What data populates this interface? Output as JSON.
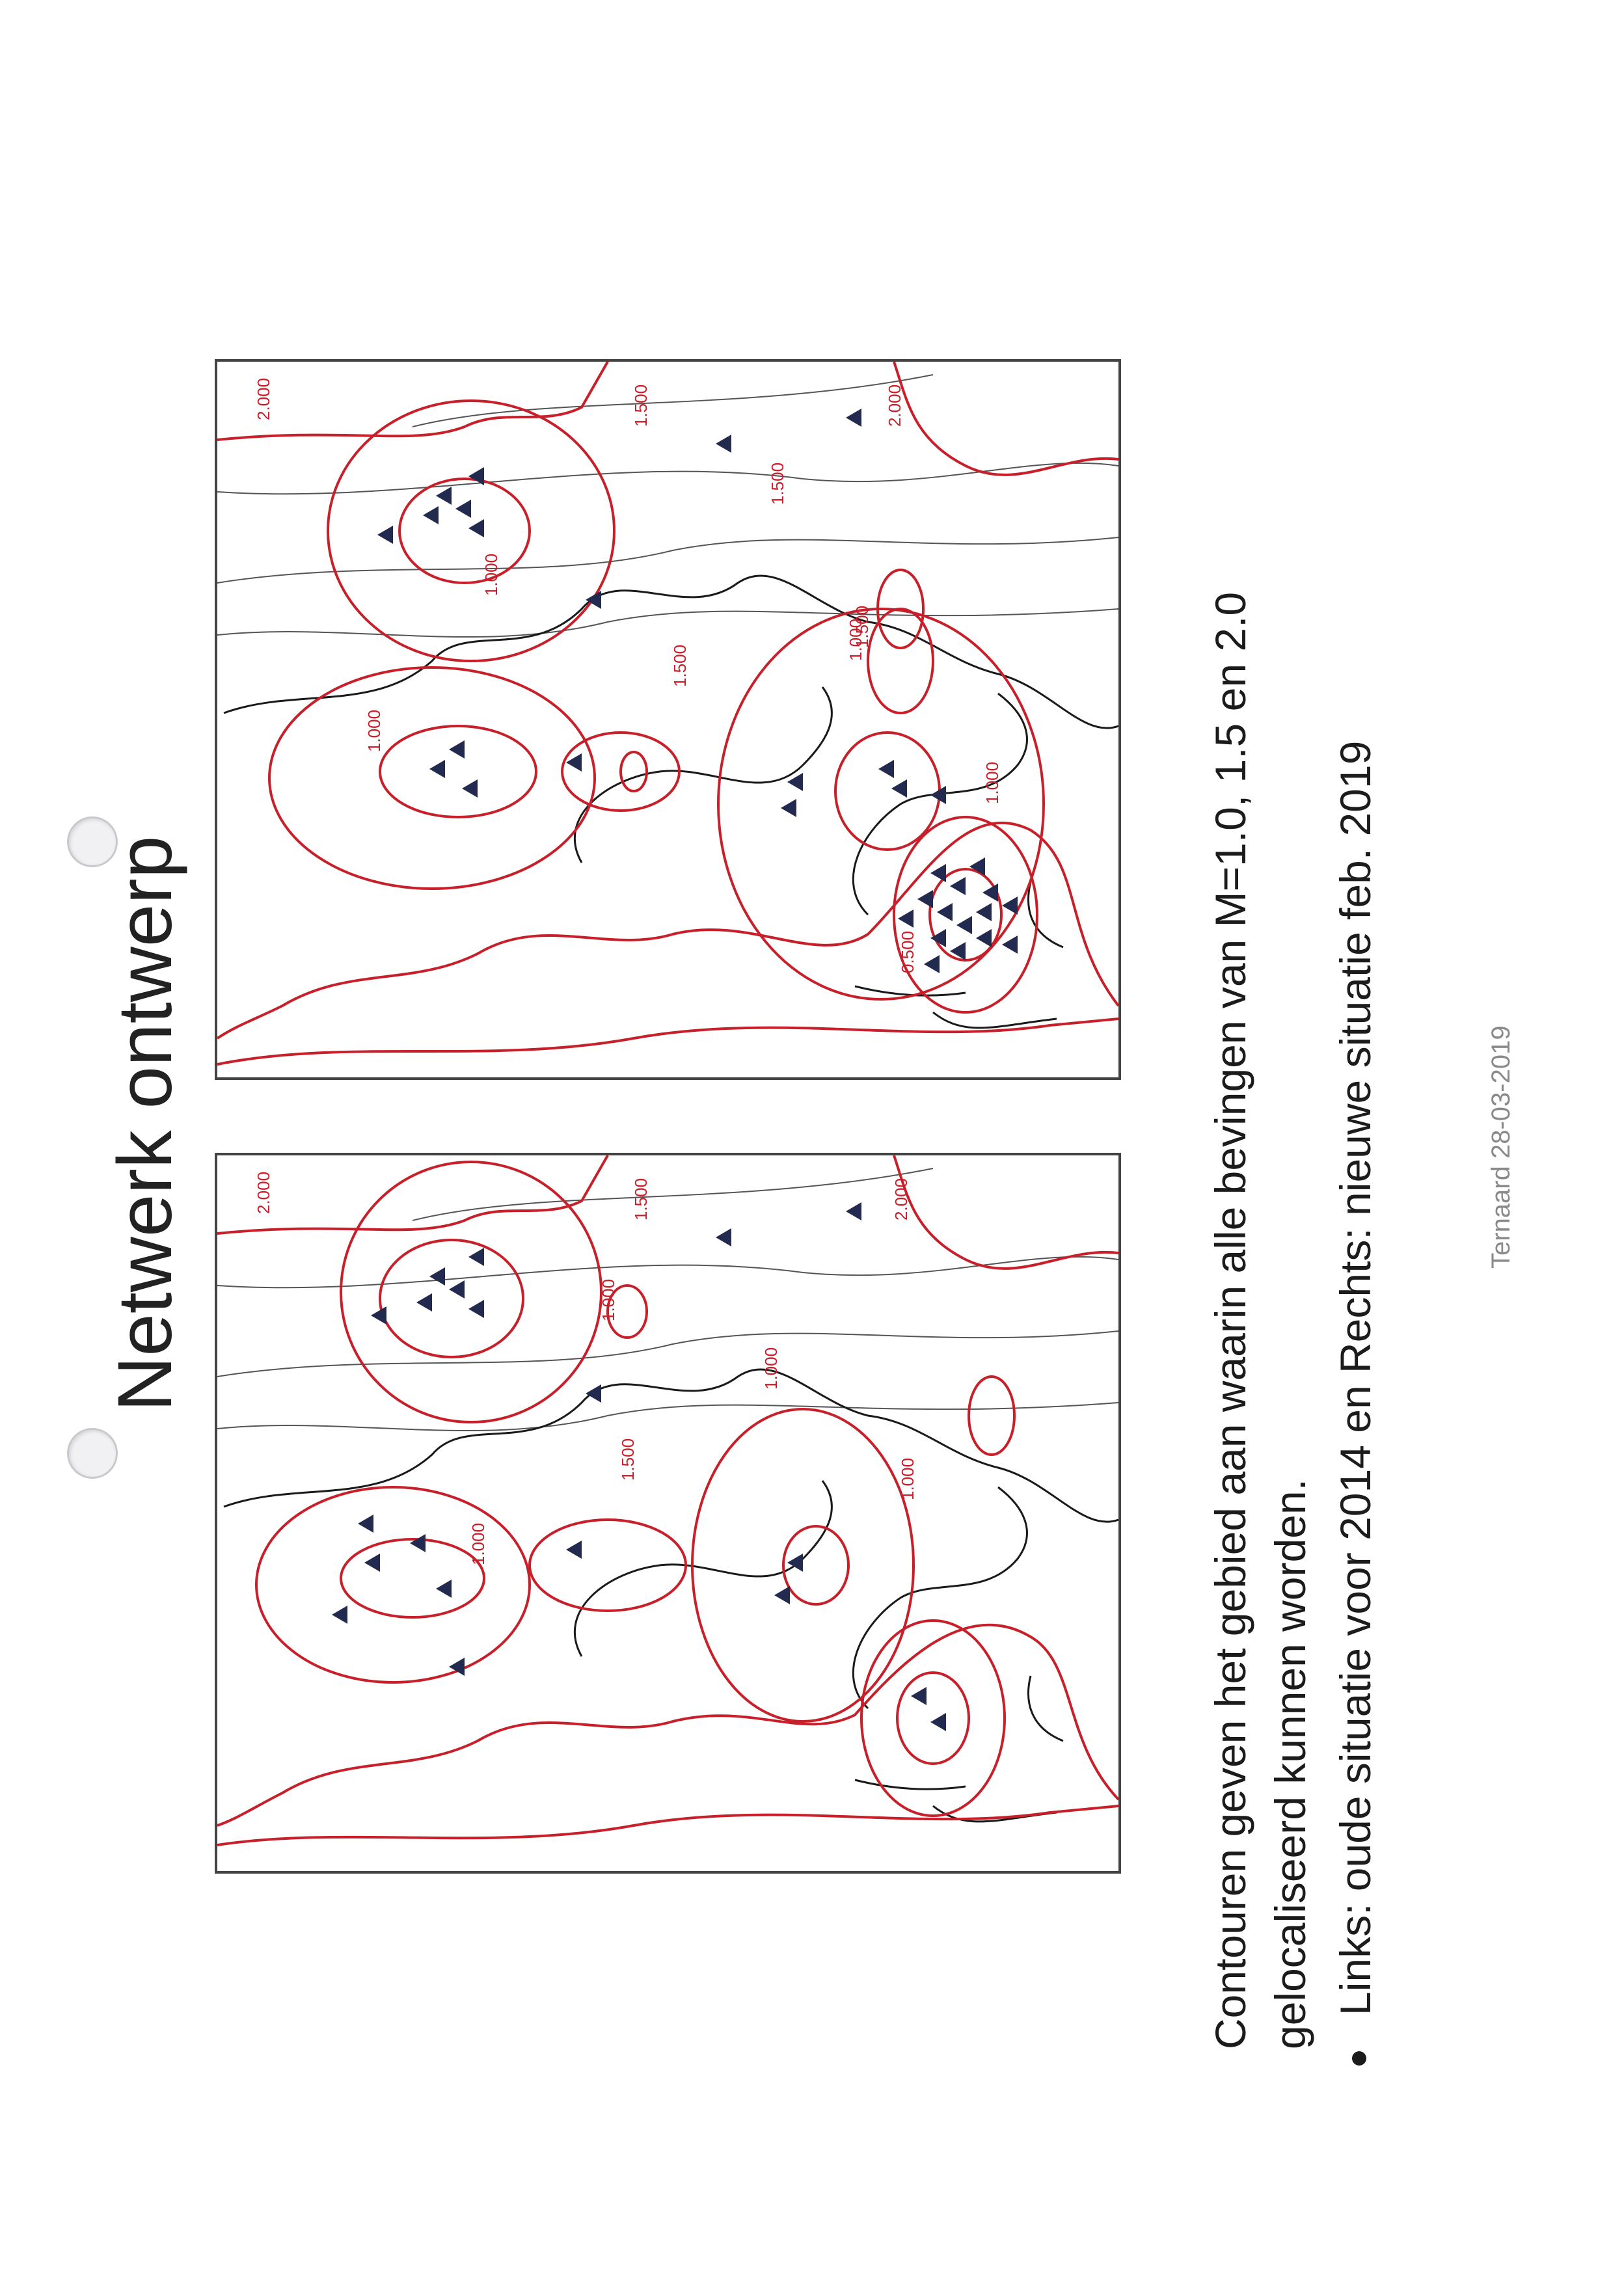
{
  "title": "Netwerk ontwerp",
  "caption": {
    "line1": "Contouren geven het gebied aan waarin alle bevingen van M=1.0, 1.5 en 2.0",
    "line2": "gelocaliseerd kunnen worden."
  },
  "bullet": "Links: oude situatie voor 2014 en Rechts: nieuwe situatie feb. 2019",
  "footer": "Ternaard 28-03-2019",
  "colors": {
    "contour": "#c8202a",
    "station": "#232a4f",
    "land": "#1a1a1a",
    "river": "#555555"
  },
  "icons": {
    "station": "triangle-station-icon",
    "punch_hole": "punch-hole-icon"
  },
  "maps": {
    "old": {
      "labels": {
        "c2000_top": "2.000",
        "c1500": "1.500",
        "c1000_a": "1.000",
        "c1000_b": "1.000",
        "c1000_c": "1.000",
        "c1500_b": "1.500",
        "c2000_b": "2.000",
        "c1000_d": "1.000"
      }
    },
    "new": {
      "labels": {
        "c0500": "0.500",
        "c1000_a": "1.000",
        "c1000_b": "1.000",
        "c1000_c": "1.000",
        "c1000_d": "1.000",
        "c1500_a": "1.500",
        "c1500_b": "1.500",
        "c1500_c": "1.500",
        "c1500_d": "1.500",
        "c2000_a": "2.000",
        "c2000_b": "2.000"
      }
    }
  }
}
